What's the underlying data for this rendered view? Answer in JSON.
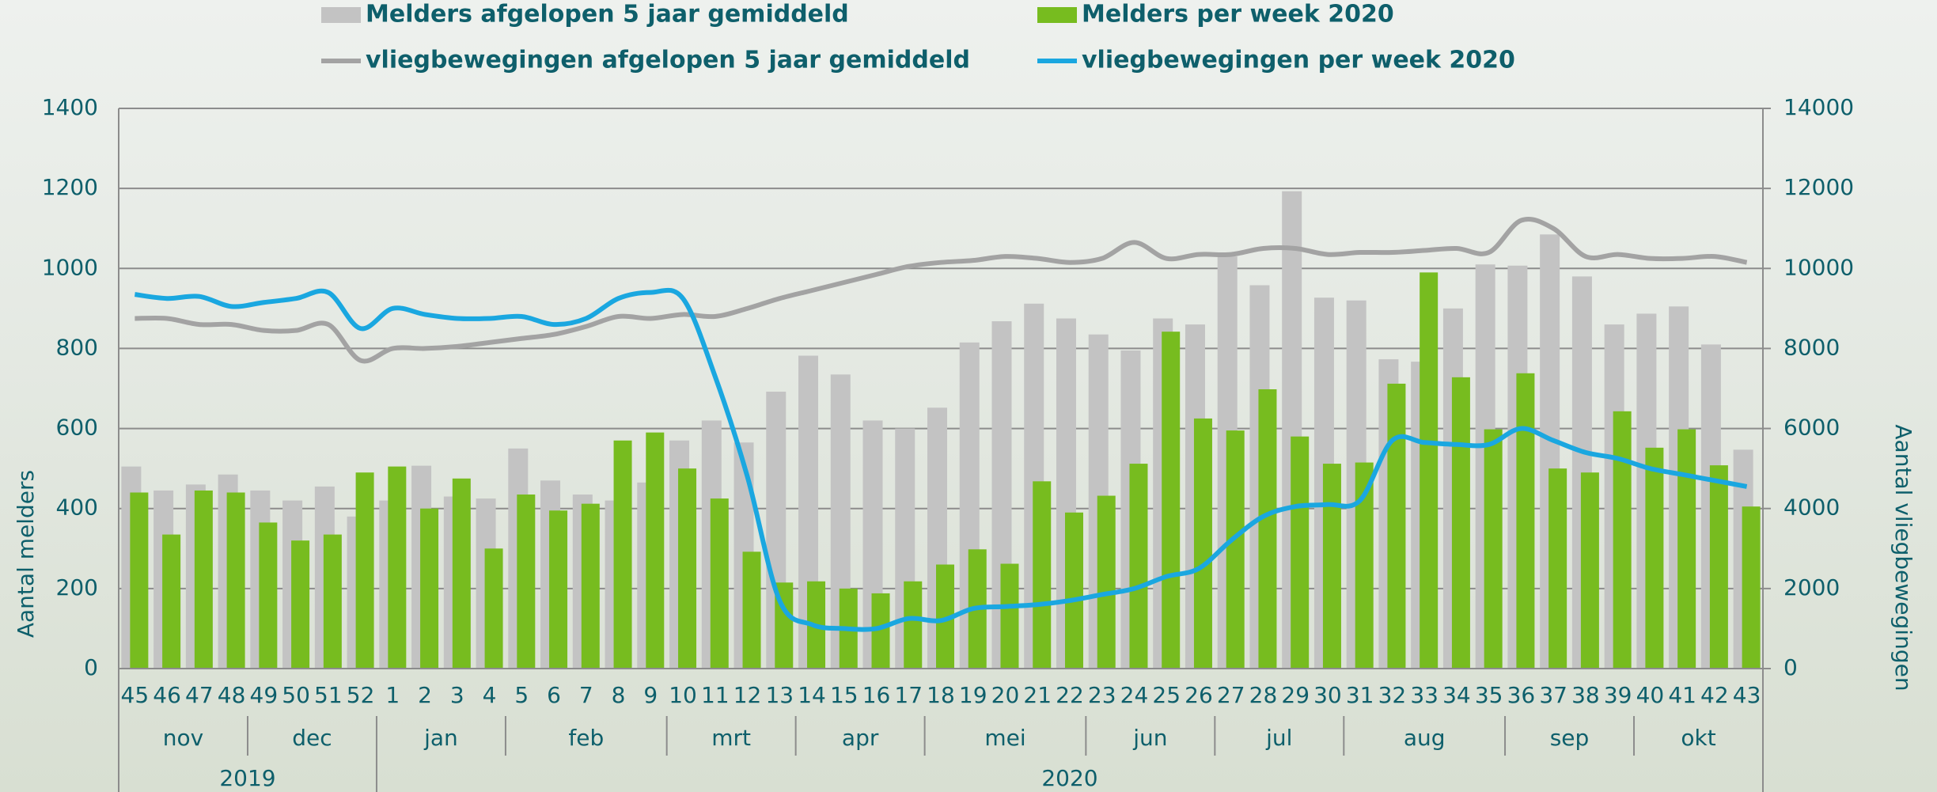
{
  "chart_data": {
    "type": "bar",
    "categories": [
      "45",
      "46",
      "47",
      "48",
      "49",
      "50",
      "51",
      "52",
      "1",
      "2",
      "3",
      "4",
      "5",
      "6",
      "7",
      "8",
      "9",
      "10",
      "11",
      "12",
      "13",
      "14",
      "15",
      "16",
      "17",
      "18",
      "19",
      "20",
      "21",
      "22",
      "23",
      "24",
      "25",
      "26",
      "27",
      "28",
      "29",
      "30",
      "31",
      "32",
      "33",
      "34",
      "35",
      "36",
      "37",
      "38",
      "39",
      "40",
      "41",
      "42",
      "43"
    ],
    "month_labels": [
      "nov",
      "nov",
      "nov",
      "nov",
      "dec",
      "dec",
      "dec",
      "dec",
      "jan",
      "jan",
      "jan",
      "jan",
      "feb",
      "feb",
      "feb",
      "feb",
      "feb",
      "mrt",
      "mrt",
      "mrt",
      "mrt",
      "apr",
      "apr",
      "apr",
      "apr",
      "mei",
      "mei",
      "mei",
      "mei",
      "mei",
      "jun",
      "jun",
      "jun",
      "jun",
      "jul",
      "jul",
      "jul",
      "jul",
      "aug",
      "aug",
      "aug",
      "aug",
      "aug",
      "sep",
      "sep",
      "sep",
      "sep",
      "okt",
      "okt",
      "okt",
      "okt"
    ],
    "year_labels": [
      "2019",
      "2019",
      "2019",
      "2019",
      "2019",
      "2019",
      "2019",
      "2019",
      "2020",
      "2020",
      "2020",
      "2020",
      "2020",
      "2020",
      "2020",
      "2020",
      "2020",
      "2020",
      "2020",
      "2020",
      "2020",
      "2020",
      "2020",
      "2020",
      "2020",
      "2020",
      "2020",
      "2020",
      "2020",
      "2020",
      "2020",
      "2020",
      "2020",
      "2020",
      "2020",
      "2020",
      "2020",
      "2020",
      "2020",
      "2020",
      "2020",
      "2020",
      "2020",
      "2020",
      "2020",
      "2020",
      "2020",
      "2020",
      "2020",
      "2020",
      "2020"
    ],
    "series": [
      {
        "name": "Melders afgelopen 5 jaar gemiddeld",
        "type": "bar",
        "color": "#c3c3c3",
        "values": [
          505,
          445,
          460,
          485,
          445,
          420,
          455,
          380,
          420,
          507,
          430,
          425,
          550,
          470,
          435,
          420,
          465,
          570,
          620,
          565,
          692,
          782,
          735,
          620,
          600,
          652,
          815,
          868,
          912,
          875,
          835,
          795,
          875,
          860,
          1030,
          958,
          1193,
          927,
          920,
          773,
          767,
          900,
          1010,
          1007,
          1085,
          980,
          860,
          887,
          905,
          810,
          547
        ]
      },
      {
        "name": "Melders per week 2020",
        "type": "bar",
        "color": "#77bc1f",
        "values": [
          440,
          335,
          445,
          440,
          365,
          320,
          335,
          490,
          505,
          400,
          475,
          300,
          435,
          395,
          412,
          570,
          590,
          500,
          425,
          292,
          215,
          218,
          200,
          188,
          218,
          260,
          298,
          262,
          468,
          390,
          432,
          512,
          842,
          625,
          595,
          698,
          580,
          512,
          515,
          712,
          990,
          728,
          598,
          738,
          500,
          490,
          643,
          552,
          598,
          508,
          405
        ]
      },
      {
        "name": "vliegbewegingen afgelopen 5 jaar gemiddeld",
        "type": "line",
        "axis": "y2",
        "color": "#a3a3a3",
        "values": [
          8750,
          8750,
          8600,
          8600,
          8450,
          8450,
          8600,
          7700,
          8000,
          8000,
          8050,
          8150,
          8250,
          8350,
          8550,
          8800,
          8750,
          8850,
          8800,
          9000,
          9250,
          9450,
          9650,
          9850,
          10050,
          10150,
          10200,
          10300,
          10250,
          10150,
          10250,
          10650,
          10250,
          10350,
          10350,
          10500,
          10500,
          10350,
          10400,
          10400,
          10450,
          10500,
          10400,
          11200,
          11000,
          10300,
          10350,
          10250,
          10250,
          10300,
          10150
        ]
      },
      {
        "name": "vliegbewegingen per week 2020",
        "type": "line",
        "axis": "y2",
        "color": "#1aa7e0",
        "values": [
          9350,
          9250,
          9300,
          9050,
          9150,
          9250,
          9400,
          8500,
          9000,
          8850,
          8750,
          8750,
          8800,
          8600,
          8750,
          9250,
          9400,
          9250,
          7300,
          4800,
          1700,
          1100,
          1000,
          1000,
          1250,
          1200,
          1500,
          1550,
          1600,
          1700,
          1850,
          2000,
          2300,
          2500,
          3200,
          3800,
          4050,
          4100,
          4200,
          5700,
          5650,
          5600,
          5600,
          6000,
          5700,
          5400,
          5250,
          5000,
          4850,
          4700,
          4550
        ]
      }
    ],
    "ylabel": "Aantal melders",
    "y2label": "Aantal vliegbewegingen",
    "ylim": [
      0,
      1400
    ],
    "yticks": [
      0,
      200,
      400,
      600,
      800,
      1000,
      1200,
      1400
    ],
    "y2lim": [
      0,
      14000
    ],
    "y2ticks": [
      0,
      2000,
      4000,
      6000,
      8000,
      10000,
      12000,
      14000
    ],
    "grid": true,
    "legend": "top"
  }
}
